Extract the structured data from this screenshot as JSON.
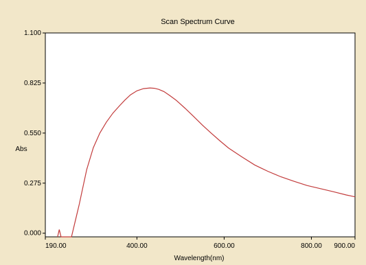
{
  "chart_data": {
    "type": "line",
    "title": "Scan Spectrum Curve",
    "xlabel": "Wavelength(nm)",
    "ylabel": "Abs",
    "xlim": [
      190,
      900
    ],
    "ylim": [
      -0.02,
      1.1
    ],
    "x_ticks": [
      {
        "value": 190,
        "label": "190.00"
      },
      {
        "value": 400,
        "label": "400.00"
      },
      {
        "value": 600,
        "label": "600.00"
      },
      {
        "value": 800,
        "label": "800.00"
      },
      {
        "value": 900,
        "label": "900.00"
      }
    ],
    "y_ticks": [
      {
        "value": 0.0,
        "label": "0.000"
      },
      {
        "value": 0.275,
        "label": "0.275"
      },
      {
        "value": 0.55,
        "label": "0.550"
      },
      {
        "value": 0.825,
        "label": "0.825"
      },
      {
        "value": 1.1,
        "label": "1.100"
      }
    ],
    "grid": false,
    "series_color": "#c23b3b",
    "series": [
      {
        "x": [
          218,
          220,
          222,
          224,
          226,
          250,
          262,
          268,
          275,
          285,
          300,
          315,
          330,
          345,
          360,
          372,
          385,
          400,
          415,
          430,
          440,
          450,
          462,
          475,
          490,
          510,
          530,
          550,
          570,
          590,
          610,
          640,
          670,
          700,
          730,
          760,
          790,
          820,
          850,
          880,
          900
        ],
        "y": [
          -0.02,
          0.0,
          0.02,
          0.0,
          -0.02,
          -0.02,
          0.1,
          0.16,
          0.24,
          0.35,
          0.47,
          0.55,
          0.61,
          0.66,
          0.7,
          0.73,
          0.76,
          0.782,
          0.794,
          0.798,
          0.796,
          0.79,
          0.778,
          0.757,
          0.73,
          0.687,
          0.641,
          0.594,
          0.55,
          0.508,
          0.468,
          0.42,
          0.375,
          0.34,
          0.31,
          0.285,
          0.262,
          0.245,
          0.228,
          0.21,
          0.2
        ]
      }
    ]
  }
}
